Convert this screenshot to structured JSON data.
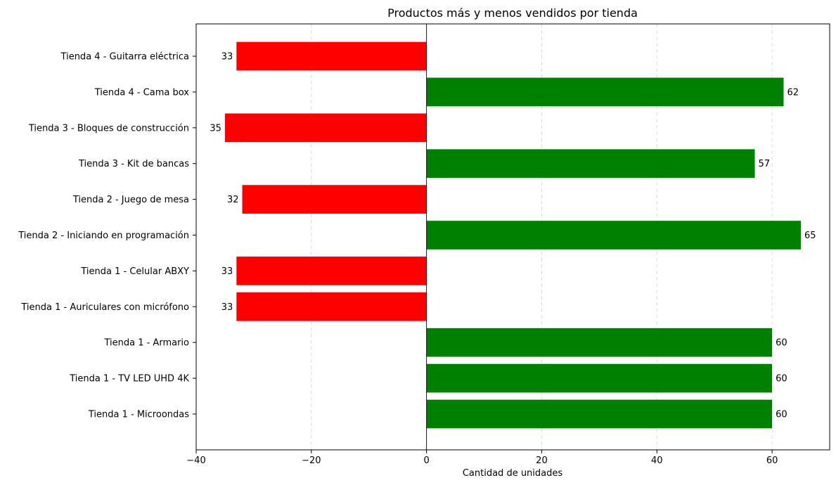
{
  "chart_data": {
    "type": "bar",
    "orientation": "horizontal",
    "title": "Productos más y menos vendidos por tienda",
    "xlabel": "Cantidad de unidades",
    "ylabel": "",
    "xlim": [
      -40,
      70
    ],
    "xticks": [
      -40,
      -20,
      0,
      20,
      40,
      60
    ],
    "grid": {
      "x": true,
      "y": false,
      "style": "dashed"
    },
    "colors": {
      "positive": "#008000",
      "negative": "#ff0000"
    },
    "categories": [
      "Tienda 1 - Microondas",
      "Tienda 1 - TV LED UHD 4K",
      "Tienda 1 - Armario",
      "Tienda 1 - Auriculares con micrófono",
      "Tienda 1 - Celular ABXY",
      "Tienda 2 - Iniciando en programación",
      "Tienda 2 - Juego de mesa",
      "Tienda 3 - Kit de bancas",
      "Tienda 3 - Bloques de construcción",
      "Tienda 4 - Cama box",
      "Tienda 4 - Guitarra eléctrica"
    ],
    "values": [
      60,
      60,
      60,
      -33,
      -33,
      65,
      -32,
      57,
      -35,
      62,
      -33
    ],
    "data_labels": [
      "60",
      "60",
      "60",
      "33",
      "33",
      "65",
      "32",
      "57",
      "35",
      "62",
      "33"
    ]
  }
}
